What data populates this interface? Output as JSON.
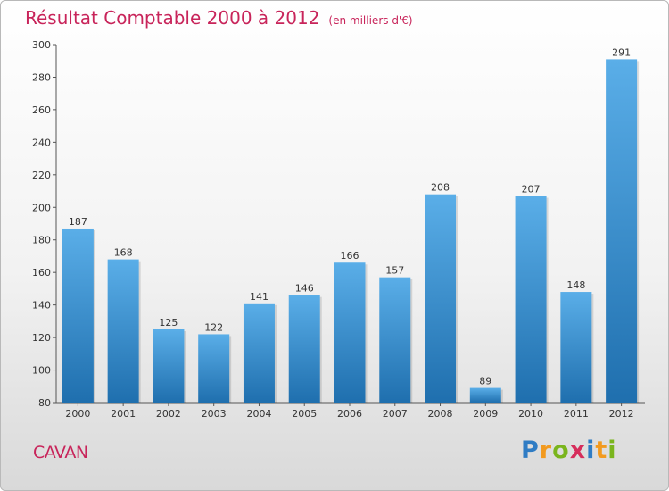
{
  "title": "Résultat Comptable 2000 à 2012",
  "subtitle": "(en milliers d'€)",
  "commune": "CAVAN",
  "logo": {
    "letters": [
      "P",
      "r",
      "o",
      "x",
      "i",
      "t",
      "i"
    ],
    "colors": [
      "#2f7cc4",
      "#f29a1f",
      "#7ab51d",
      "#d62d5b",
      "#2f7cc4",
      "#f29a1f",
      "#7ab51d"
    ]
  },
  "colors": {
    "title": "#c8245a",
    "bar_top": "#5aaee8",
    "bar_bottom": "#1f6fae"
  },
  "chart_data": {
    "type": "bar",
    "categories": [
      "2000",
      "2001",
      "2002",
      "2003",
      "2004",
      "2005",
      "2006",
      "2007",
      "2008",
      "2009",
      "2010",
      "2011",
      "2012"
    ],
    "values": [
      187,
      168,
      125,
      122,
      141,
      146,
      166,
      157,
      208,
      89,
      207,
      148,
      291
    ],
    "yticks": [
      80,
      100,
      120,
      140,
      160,
      180,
      200,
      220,
      240,
      260,
      280,
      300
    ],
    "ylim": [
      80,
      300
    ],
    "title": "Résultat Comptable 2000 à 2012",
    "xlabel": "",
    "ylabel": "",
    "grid": false
  }
}
